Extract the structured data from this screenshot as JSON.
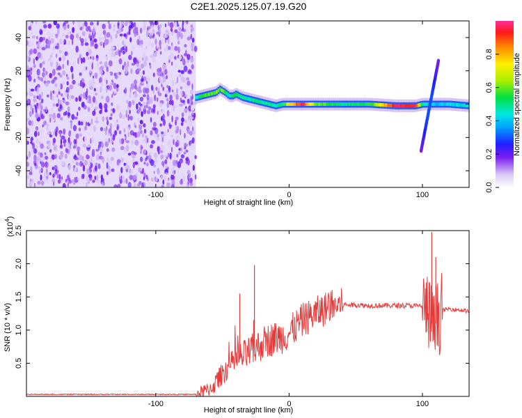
{
  "figure_title": "C2E1.2025.125.07.19.G20",
  "chart_data": [
    {
      "type": "heatmap",
      "xlabel": "Height of straight line (km)",
      "ylabel": "Frequency (Hz)",
      "xlim": [
        -197,
        135
      ],
      "ylim": [
        -50,
        50
      ],
      "x_ticks": [
        -100,
        0,
        100
      ],
      "x_tick_labels": [
        "-100",
        "0",
        "100"
      ],
      "y_ticks": [
        -40,
        -20,
        0,
        20,
        40
      ],
      "y_tick_labels": [
        "-40",
        "-20",
        "0",
        "20",
        "40"
      ],
      "colorbar": {
        "label": "Normalized spectral amplitude",
        "range": [
          0,
          1
        ],
        "ticks": [
          0.0,
          0.2,
          0.4,
          0.6,
          0.8
        ],
        "tick_labels": [
          "0.0",
          "0.2",
          "0.4",
          "0.6",
          "0.8"
        ]
      },
      "noise_region_x": [
        -197,
        -70
      ],
      "ridge": {
        "x": [
          -70,
          -65,
          -60,
          -55,
          -52,
          -50,
          -48,
          -45,
          -42,
          -40,
          -35,
          -30,
          -25,
          -20,
          -15,
          -10,
          -5,
          0,
          10,
          20,
          40,
          60,
          80,
          95,
          100,
          105,
          110,
          120,
          135
        ],
        "freq": [
          4,
          5,
          6,
          7,
          9,
          8,
          7,
          5,
          5,
          6,
          4,
          3,
          2,
          1,
          0,
          -1,
          0,
          0,
          0,
          0,
          0,
          0,
          -1,
          -1,
          0,
          0,
          0,
          0,
          -1
        ],
        "amplitude": [
          0.45,
          0.55,
          0.6,
          0.6,
          0.55,
          0.6,
          0.5,
          0.5,
          0.55,
          0.55,
          0.5,
          0.45,
          0.5,
          0.5,
          0.5,
          0.45,
          0.5,
          0.75,
          0.95,
          0.6,
          0.5,
          0.55,
          0.95,
          0.95,
          0.45,
          0.5,
          0.4,
          0.4,
          0.45
        ]
      },
      "streak": {
        "x": [
          99,
          112
        ],
        "freq": [
          -28,
          26
        ]
      }
    },
    {
      "type": "line",
      "xlabel": "Height of straight line (km)",
      "ylabel": "SNR (10 * v/v)",
      "y_multiplier_label": "(x10",
      "y_multiplier_exp": "4",
      "y_multiplier_close": ")",
      "xlim": [
        -197,
        135
      ],
      "ylim": [
        0,
        2.5
      ],
      "x_ticks": [
        -100,
        0,
        100
      ],
      "x_tick_labels": [
        "-100",
        "0",
        "100"
      ],
      "y_ticks": [
        0.5,
        1.0,
        1.5,
        2.0,
        2.5
      ],
      "y_tick_labels": [
        "0.5",
        "1.0",
        "1.5",
        "2.0",
        "2.5"
      ],
      "series": [
        {
          "color": "#e83a3a",
          "x": [
            -197,
            -150,
            -100,
            -70,
            -60,
            -55,
            -50,
            -45,
            -40,
            -35,
            -30,
            -25,
            -20,
            -15,
            -10,
            -5,
            0,
            5,
            10,
            15,
            20,
            25,
            30,
            40,
            50,
            60,
            70,
            80,
            90,
            100,
            103,
            106,
            108,
            110,
            112,
            115,
            120,
            130,
            135
          ],
          "y": [
            0.03,
            0.03,
            0.03,
            0.03,
            0.1,
            0.2,
            0.35,
            0.45,
            0.55,
            0.6,
            0.65,
            0.72,
            0.8,
            0.85,
            0.88,
            0.9,
            0.95,
            1.05,
            1.15,
            1.2,
            1.25,
            1.3,
            1.35,
            1.38,
            1.38,
            1.37,
            1.37,
            1.37,
            1.37,
            1.36,
            1.3,
            1.2,
            1.0,
            1.1,
            1.2,
            1.3,
            1.32,
            1.3,
            1.28
          ]
        }
      ],
      "spikes": [
        {
          "x": -37,
          "y": 1.55
        },
        {
          "x": -26,
          "y": 1.98
        },
        {
          "x": -12,
          "y": 1.0
        },
        {
          "x": 107,
          "y": 2.48
        },
        {
          "x": 110,
          "y": 2.1
        }
      ]
    }
  ]
}
